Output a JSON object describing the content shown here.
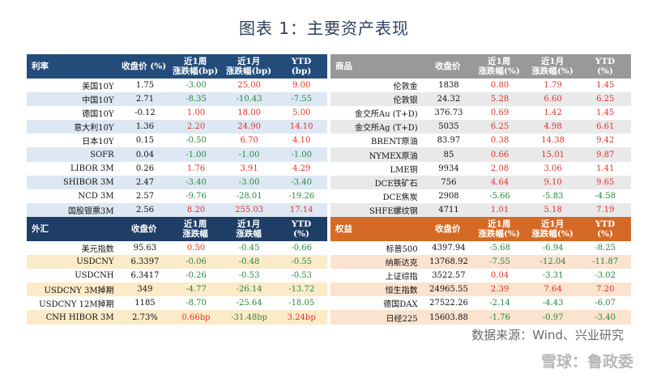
{
  "title": "图表 1：主要资产表现",
  "colors": {
    "rates": "#244c7a",
    "commod": "#999999",
    "fx": "#1f3e66",
    "equity": "#d56a26",
    "rates_alt": "#dde8f4",
    "commod_alt": "#e9e9e9",
    "fx_alt": "#fcebc8",
    "equity_alt": "#fbe3cf"
  },
  "panels": [
    {
      "key": "rates",
      "header": [
        "利率",
        "收盘价 (%)",
        "近1周\n涨跌幅(bp)",
        "近1月\n涨跌幅(bp)",
        "YTD\n(bp)"
      ],
      "rows": [
        [
          "美国10Y",
          "1.75",
          "-3.00",
          "25.00",
          "9.00"
        ],
        [
          "中国10Y",
          "2.71",
          "-8.35",
          "-10.43",
          "-7.55"
        ],
        [
          "德国10Y",
          "-0.12",
          "1.00",
          "18.00",
          "5.00"
        ],
        [
          "意大利10Y",
          "1.36",
          "2.20",
          "24.90",
          "14.10"
        ],
        [
          "日本10Y",
          "0.15",
          "-0.50",
          "6.70",
          "4.10"
        ],
        [
          "SOFR",
          "0.04",
          "-1.00",
          "-1.00",
          "-1.00"
        ],
        [
          "LIBOR 3M",
          "0.26",
          "1.76",
          "3.91",
          "4.29"
        ],
        [
          "SHIBOR 3M",
          "2.47",
          "-3.40",
          "-3.00",
          "-3.40"
        ],
        [
          "NCD 3M",
          "2.57",
          "-9.76",
          "-28.01",
          "-19.26"
        ],
        [
          "国股银票3M",
          "2.56",
          "8.20",
          "255.03",
          "17.14"
        ]
      ]
    },
    {
      "key": "commod",
      "header": [
        "商品",
        "收盘价",
        "近1周\n涨跌幅(%)",
        "近1月\n涨跌幅(%)",
        "YTD\n(%)"
      ],
      "rows": [
        [
          "伦敦金",
          "1838",
          "0.80",
          "1.79",
          "1.45"
        ],
        [
          "伦敦银",
          "24.32",
          "5.28",
          "6.60",
          "6.25"
        ],
        [
          "金交所Au (T+D)",
          "376.73",
          "0.69",
          "1.42",
          "1.45"
        ],
        [
          "金交所Ag (T+D)",
          "5035",
          "6.25",
          "4.98",
          "6.61"
        ],
        [
          "BRENT原油",
          "83.97",
          "0.38",
          "14.38",
          "9.42"
        ],
        [
          "NYMEX原油",
          "85",
          "0.66",
          "15.01",
          "9.87"
        ],
        [
          "LME铜",
          "9934",
          "2.08",
          "3.06",
          "1.41"
        ],
        [
          "DCE铁矿石",
          "756",
          "4.64",
          "9.10",
          "9.65"
        ],
        [
          "DCE焦炭",
          "2908",
          "-5.66",
          "-5.83",
          "-4.58"
        ],
        [
          "SHFE螺纹钢",
          "4711",
          "1.01",
          "5.18",
          "7.19"
        ]
      ]
    },
    {
      "key": "fx",
      "header": [
        "外汇",
        "收盘价",
        "近1周\n涨跌幅",
        "近1月\n涨跌幅",
        "YTD\n(%)"
      ],
      "rows": [
        [
          "美元指数",
          "95.63",
          "0.50",
          "-0.45",
          "-0.66"
        ],
        [
          "USDCNY",
          "6.3397",
          "-0.06",
          "-0.48",
          "-0.55"
        ],
        [
          "USDCNH",
          "6.3417",
          "-0.26",
          "-0.53",
          "-0.53"
        ],
        [
          "USDCNY 3M掉期",
          "349",
          "-4.77",
          "-26.14",
          "-13.72"
        ],
        [
          "USDCNY 12M掉期",
          "1185",
          "-8.70",
          "-25.64",
          "-18.05"
        ],
        [
          "CNH HIBOR 3M",
          "2.73%",
          "0.66bp",
          "-31.48bp",
          "3.24bp"
        ]
      ]
    },
    {
      "key": "equity",
      "header": [
        "权益",
        "收盘价",
        "近1周\n涨跌幅(%)",
        "近1月\n涨跌幅(%)",
        "YTD\n(%)"
      ],
      "rows": [
        [
          "标普500",
          "4397.94",
          "-5.68",
          "-6.94",
          "-8.25"
        ],
        [
          "纳斯达克",
          "13768.92",
          "-7.55",
          "-12.04",
          "-11.87"
        ],
        [
          "上证综指",
          "3522.57",
          "0.04",
          "-3.31",
          "-3.02"
        ],
        [
          "恒生指数",
          "24965.55",
          "2.39",
          "7.64",
          "7.20"
        ],
        [
          "德国DAX",
          "27522.26",
          "-2.14",
          "-4.43",
          "-6.07"
        ],
        [
          "日经225",
          "15603.88",
          "-1.76",
          "-0.97",
          "-3.40"
        ]
      ]
    }
  ],
  "source": "数据来源：Wind、兴业研究",
  "watermark": "雪球：鲁政委"
}
